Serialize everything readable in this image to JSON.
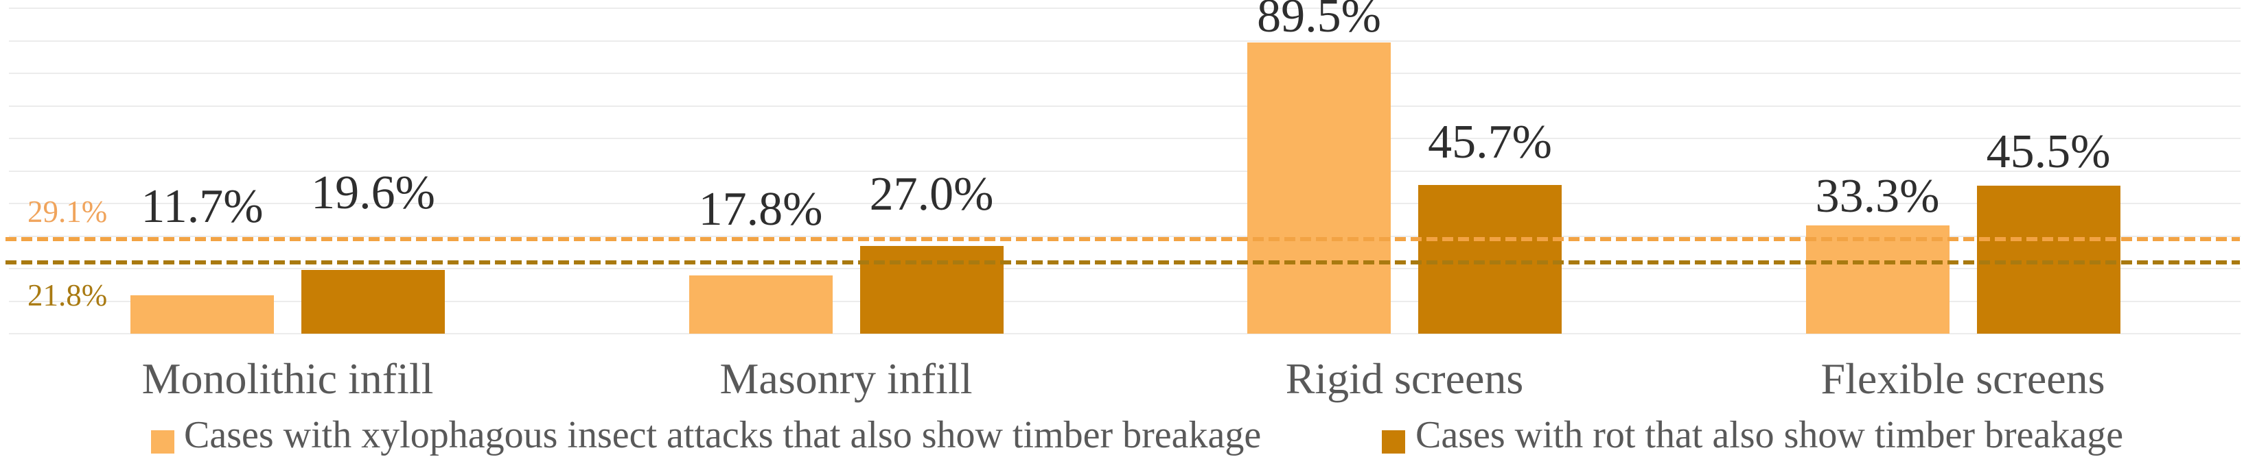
{
  "chart_data": {
    "type": "bar",
    "title": "",
    "categories": [
      "Monolithic infill",
      "Masonry infill",
      "Rigid screens",
      "Flexible screens"
    ],
    "series": [
      {
        "name": "Cases with xylophagous insect attacks that also show timber breakage",
        "color": "#fbb45e",
        "values": [
          11.7,
          17.8,
          89.5,
          33.3
        ],
        "labels": [
          "11.7%",
          "17.8%",
          "89.5%",
          "33.3%"
        ]
      },
      {
        "name": "Cases with rot that also show timber breakage",
        "color": "#c87e04",
        "values": [
          19.6,
          27.0,
          45.7,
          45.5
        ],
        "labels": [
          "19.6%",
          "27.0%",
          "45.7%",
          "45.5%"
        ]
      }
    ],
    "reference_lines": [
      {
        "label": "29.1%",
        "value": 29.1,
        "color": "#f2a344",
        "label_color": "#f0a45c",
        "style": "dashed"
      },
      {
        "label": "21.8%",
        "value": 21.8,
        "color": "#a97a10",
        "label_color": "#a97a12",
        "style": "dashed"
      }
    ],
    "ylim": [
      0,
      100
    ],
    "gridlines": "horizontal every 10%, light gray, no tick labels",
    "value_label_color": "#2e2e2e",
    "category_label_color": "#595959",
    "legend_position": "bottom",
    "background": "#ffffff"
  }
}
